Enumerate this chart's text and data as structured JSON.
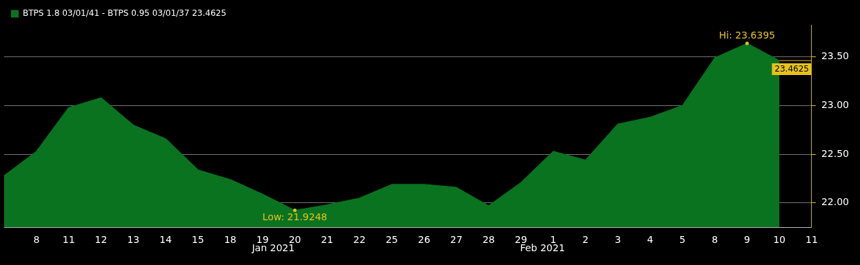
{
  "chart_data": {
    "type": "area",
    "categories": [
      null,
      "8",
      "11",
      "12",
      "13",
      "14",
      "15",
      "18",
      "19",
      "20",
      "21",
      "22",
      "25",
      "26",
      "27",
      "28",
      "29",
      "1",
      "2",
      "3",
      "4",
      "5",
      "8",
      "9",
      "10",
      "11"
    ],
    "series": [
      {
        "name": "BTPS 1.8 03/01/41 - BTPS 0.95 03/01/37 23.4625",
        "color": "#0a7320",
        "values": [
          22.28,
          22.53,
          22.98,
          23.08,
          22.8,
          22.66,
          22.34,
          22.24,
          22.09,
          21.9248,
          21.98,
          22.05,
          22.19,
          22.19,
          22.16,
          21.97,
          22.21,
          22.53,
          22.44,
          22.81,
          22.88,
          23.0,
          23.49,
          23.6395,
          23.4625,
          null
        ]
      }
    ],
    "ylim": [
      21.75,
      23.83
    ],
    "yticks": [
      {
        "value": 22,
        "label": "22.00"
      },
      {
        "value": 22.5,
        "label": "22.50"
      },
      {
        "value": 23,
        "label": "23.00"
      },
      {
        "value": 23.5,
        "label": "23.50"
      }
    ],
    "grid": "y",
    "legend": "top left",
    "ref_lines": [
      {
        "axis": "y",
        "value": 23.4625,
        "label": "23.4625",
        "color": "#e6c21a"
      }
    ],
    "annotations": [
      {
        "text": "Low: 21.9248",
        "x": "20",
        "y": 21.9248
      },
      {
        "text": "Hi: 23.6395",
        "x": "9",
        "y": 23.6395
      },
      "Jan 2021",
      "Feb 2021"
    ]
  }
}
